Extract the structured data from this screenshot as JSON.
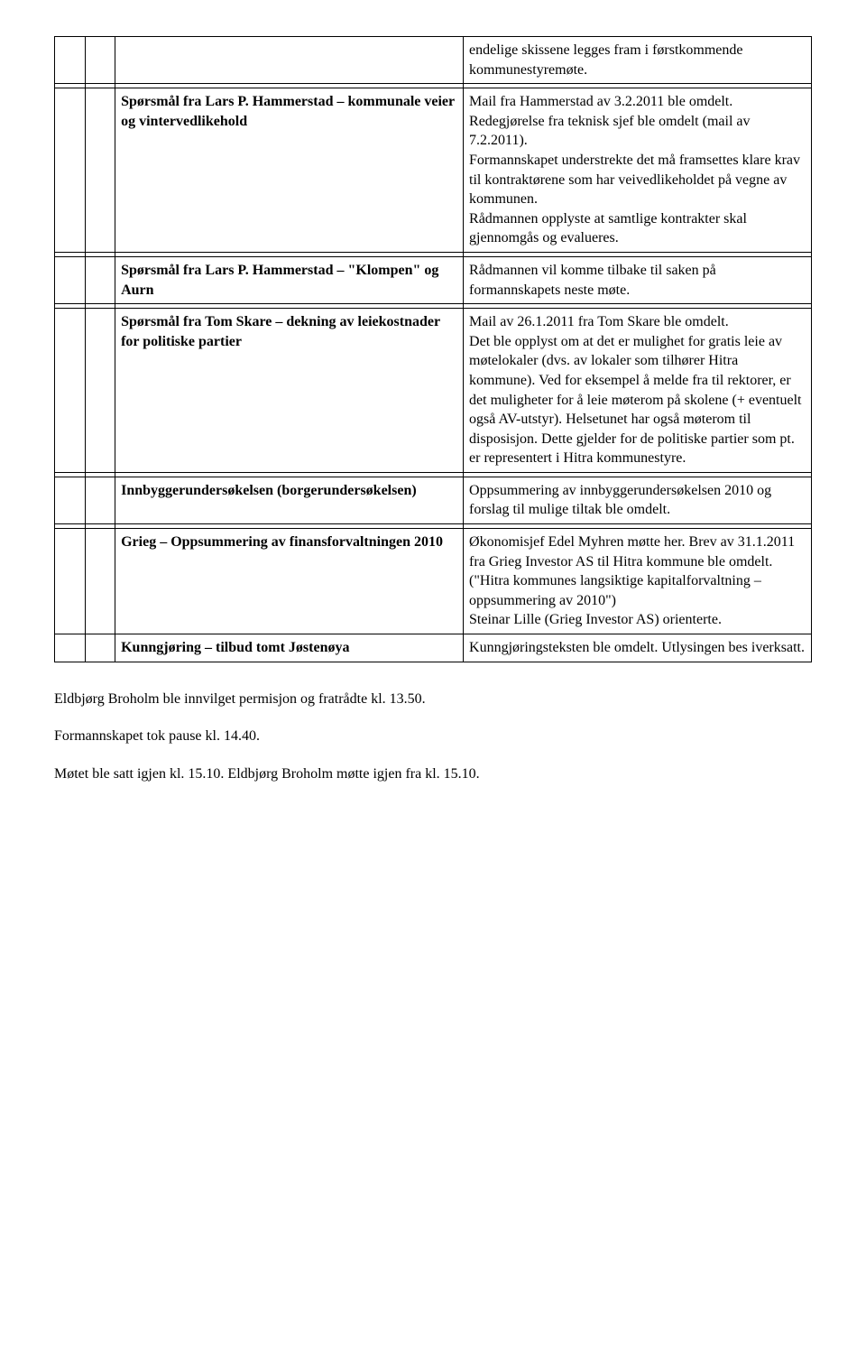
{
  "rows": {
    "r0_right": "endelige skissene legges fram i førstkommende kommunestyremøte.",
    "r1_left": "Spørsmål fra Lars P. Hammerstad – kommunale veier og vintervedlikehold",
    "r1_right": "Mail fra Hammerstad av 3.2.2011 ble omdelt.\nRedegjørelse fra teknisk sjef ble omdelt (mail av 7.2.2011).\nFormannskapet understrekte det må framsettes klare krav til kontraktørene som har veivedlikeholdet på vegne av kommunen.\nRådmannen opplyste at samtlige kontrakter skal gjennomgås og evalueres.",
    "r2_left": "Spørsmål fra Lars P. Hammerstad – \"Klompen\" og Aurn",
    "r2_right": "Rådmannen vil komme tilbake til saken på formannskapets neste møte.",
    "r3_left": "Spørsmål fra Tom Skare – dekning av leiekostnader for politiske partier",
    "r3_right": "Mail av 26.1.2011 fra Tom Skare ble omdelt.\nDet ble opplyst om at det er mulighet for gratis leie av møtelokaler (dvs. av lokaler som tilhører Hitra kommune). Ved for eksempel å melde fra til rektorer, er det muligheter for å leie møterom på skolene (+ eventuelt også AV-utstyr). Helsetunet har også møterom til disposisjon. Dette gjelder for de politiske partier som pt. er representert i Hitra kommunestyre.",
    "r4_left": "Innbyggerundersøkelsen (borgerundersøkelsen)",
    "r4_right": "Oppsummering av innbyggerundersøkelsen 2010 og forslag til mulige tiltak ble omdelt.",
    "r5_left": "Grieg – Oppsummering av finansforvaltningen 2010",
    "r5_right": "Økonomisjef Edel Myhren møtte her. Brev av 31.1.2011 fra Grieg Investor AS til Hitra kommune ble omdelt. (\"Hitra kommunes langsiktige kapitalforvaltning – oppsummering av 2010\")\nSteinar Lille (Grieg Investor AS) orienterte.",
    "r6_left": "Kunngjøring – tilbud tomt Jøstenøya",
    "r6_right": "Kunngjøringsteksten ble omdelt. Utlysingen bes iverksatt."
  },
  "footer": {
    "line1": "Eldbjørg Broholm ble innvilget permisjon og fratrådte kl. 13.50.",
    "line2": "Formannskapet tok pause kl. 14.40.",
    "line3": "Møtet ble satt igjen kl. 15.10.  Eldbjørg Broholm møtte igjen fra kl. 15.10."
  }
}
